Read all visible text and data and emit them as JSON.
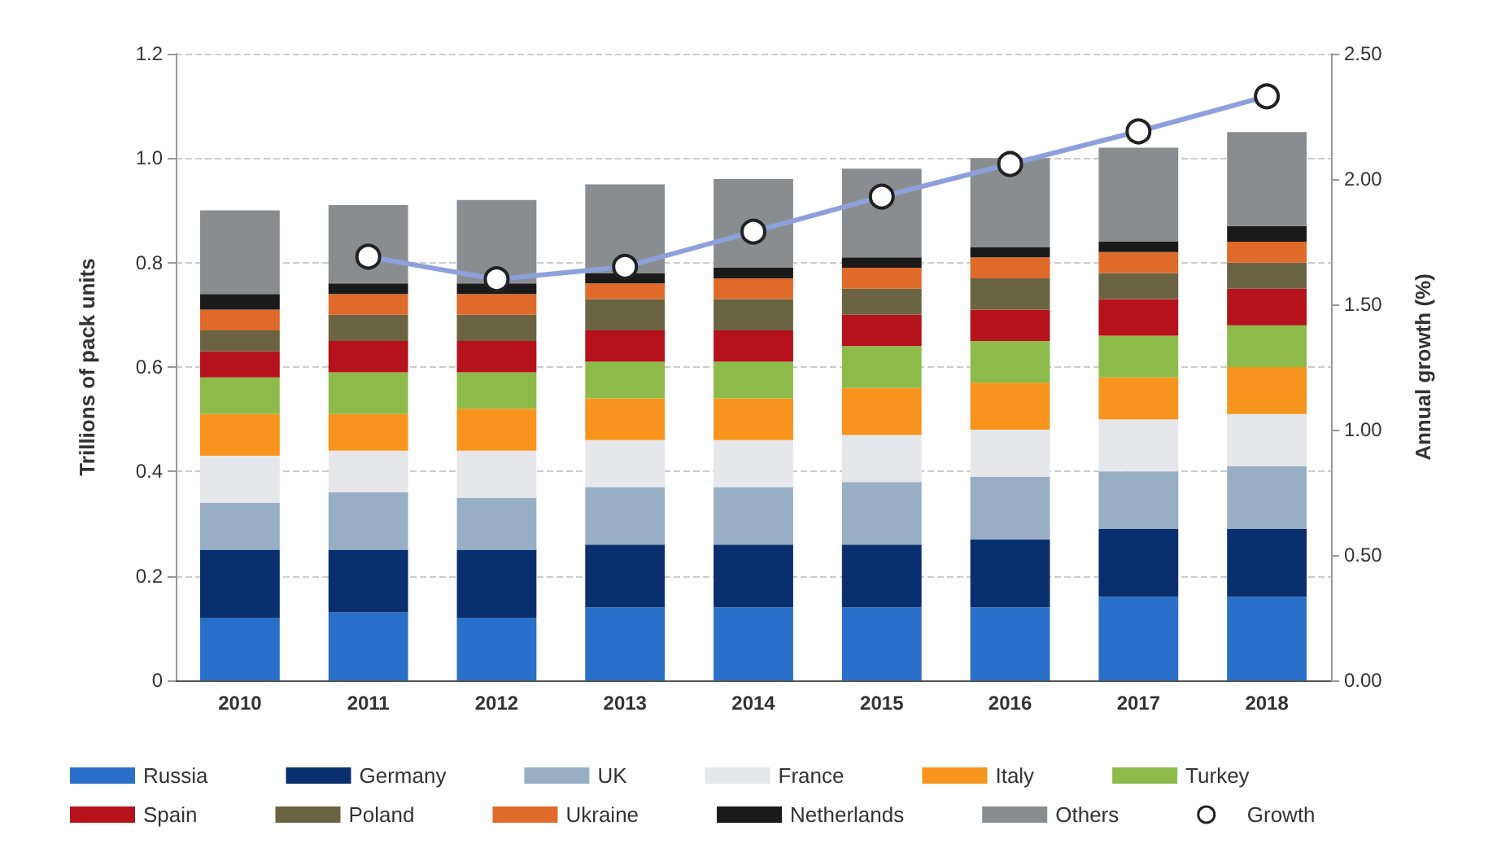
{
  "chart_data": {
    "type": "bar",
    "stacked": true,
    "categories": [
      "2010",
      "2011",
      "2012",
      "2013",
      "2014",
      "2015",
      "2016",
      "2017",
      "2018"
    ],
    "ylabel": "Trillions of pack units",
    "y2label": "Annual growth (%)",
    "ylim": [
      0,
      1.2
    ],
    "yticks": [
      0,
      0.2,
      0.4,
      0.6,
      0.8,
      {
        "value": 1,
        "label": "1.0"
      },
      {
        "value": 1.2,
        "label": "1.2"
      }
    ],
    "y2lim": [
      0,
      2.5
    ],
    "y2ticks": [
      {
        "value": 0,
        "label": "0.00"
      },
      {
        "value": 0.5,
        "label": "0.50"
      },
      {
        "value": 1,
        "label": "1.00"
      },
      {
        "value": 1.5,
        "label": "1.50"
      },
      {
        "value": 2,
        "label": "2.00"
      },
      {
        "value": 2.5,
        "label": "2.50"
      }
    ],
    "grid": "y",
    "legend": "bottom",
    "series": [
      {
        "name": "Russia",
        "color": "#2a6fc9",
        "values": [
          0.12,
          0.13,
          0.12,
          0.14,
          0.14,
          0.14,
          0.14,
          0.16,
          0.16
        ]
      },
      {
        "name": "Germany",
        "color": "#0a2f6e",
        "values": [
          0.13,
          0.12,
          0.13,
          0.12,
          0.12,
          0.12,
          0.13,
          0.13,
          0.13
        ]
      },
      {
        "name": "UK",
        "color": "#98aec4",
        "values": [
          0.09,
          0.11,
          0.1,
          0.11,
          0.11,
          0.12,
          0.12,
          0.11,
          0.12
        ]
      },
      {
        "name": "France",
        "color": "#e6e7ea",
        "values": [
          0.09,
          0.08,
          0.09,
          0.09,
          0.09,
          0.09,
          0.09,
          0.1,
          0.1
        ]
      },
      {
        "name": "Italy",
        "color": "#f7941d",
        "values": [
          0.08,
          0.07,
          0.08,
          0.08,
          0.08,
          0.09,
          0.09,
          0.08,
          0.09
        ]
      },
      {
        "name": "Turkey",
        "color": "#8dbb4a",
        "values": [
          0.07,
          0.08,
          0.07,
          0.07,
          0.07,
          0.08,
          0.08,
          0.08,
          0.08
        ]
      },
      {
        "name": "Spain",
        "color": "#b5121b",
        "values": [
          0.05,
          0.06,
          0.06,
          0.06,
          0.06,
          0.06,
          0.06,
          0.07,
          0.07
        ]
      },
      {
        "name": "Poland",
        "color": "#6b6443",
        "values": [
          0.04,
          0.05,
          0.05,
          0.06,
          0.06,
          0.05,
          0.06,
          0.05,
          0.05
        ]
      },
      {
        "name": "Ukraine",
        "color": "#e06a2a",
        "values": [
          0.04,
          0.04,
          0.04,
          0.03,
          0.04,
          0.04,
          0.04,
          0.04,
          0.04
        ]
      },
      {
        "name": "Netherlands",
        "color": "#1a1a1a",
        "values": [
          0.03,
          0.02,
          0.02,
          0.02,
          0.02,
          0.02,
          0.02,
          0.02,
          0.03
        ]
      },
      {
        "name": "Others",
        "color": "#8a8d90",
        "values": [
          0.16,
          0.15,
          0.16,
          0.17,
          0.17,
          0.17,
          0.17,
          0.18,
          0.18
        ]
      },
      {
        "name": "Growth",
        "type": "line",
        "axis": "y2",
        "marker": "circle",
        "color": "#8ea0dc",
        "values": [
          null,
          1.69,
          1.6,
          1.65,
          1.79,
          1.93,
          2.06,
          2.19,
          2.33
        ]
      }
    ]
  }
}
